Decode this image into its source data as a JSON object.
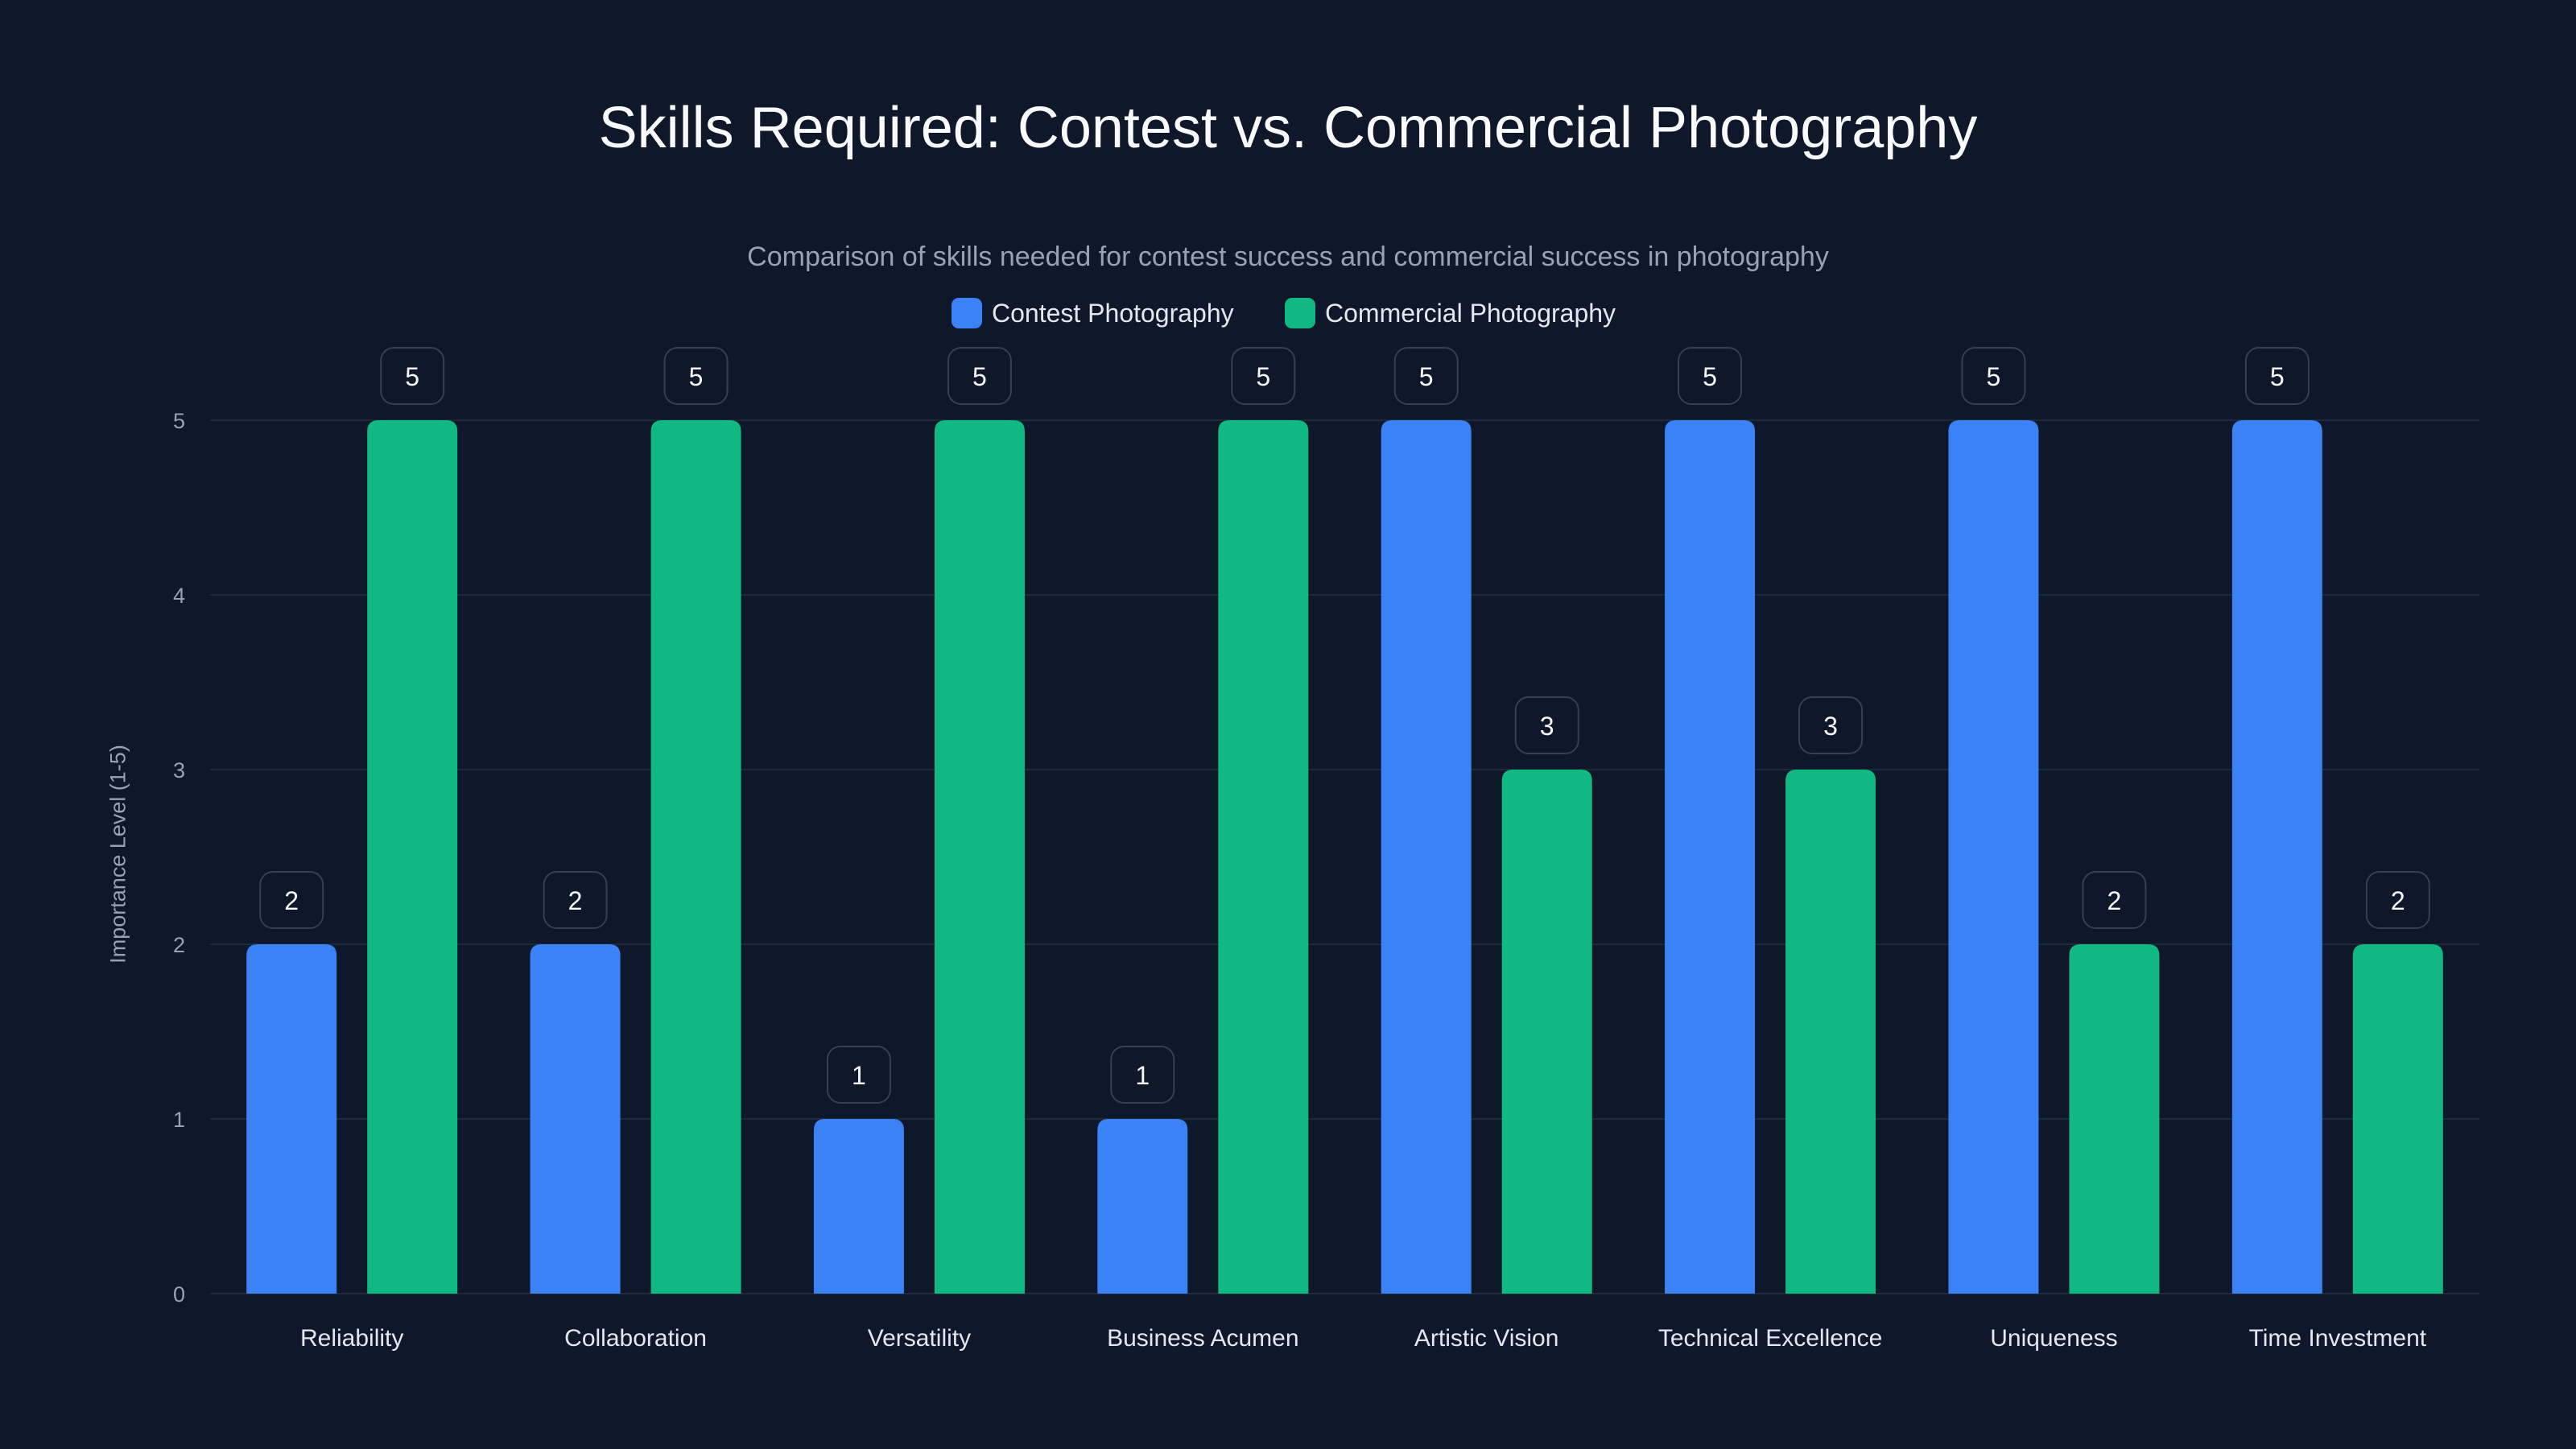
{
  "chart_data": {
    "type": "bar",
    "title": "Skills Required: Contest vs. Commercial Photography",
    "subtitle": "Comparison of skills needed for contest success and commercial success in photography",
    "xlabel": "",
    "ylabel": "Importance Level (1-5)",
    "ylim": [
      0,
      5
    ],
    "yticks": [
      "0",
      "1",
      "2",
      "3",
      "4",
      "5"
    ],
    "grid": true,
    "legend_placement": "top-center",
    "categories": [
      "Reliability",
      "Collaboration",
      "Versatility",
      "Business Acumen",
      "Artistic Vision",
      "Technical Excellence",
      "Uniqueness",
      "Time Investment"
    ],
    "series": [
      {
        "name": "Contest Photography",
        "color": "#3b82f6",
        "values": [
          2,
          2,
          1,
          1,
          5,
          5,
          5,
          5
        ]
      },
      {
        "name": "Commercial Photography",
        "color": "#10b981",
        "values": [
          5,
          5,
          5,
          5,
          3,
          3,
          2,
          2
        ]
      }
    ]
  }
}
